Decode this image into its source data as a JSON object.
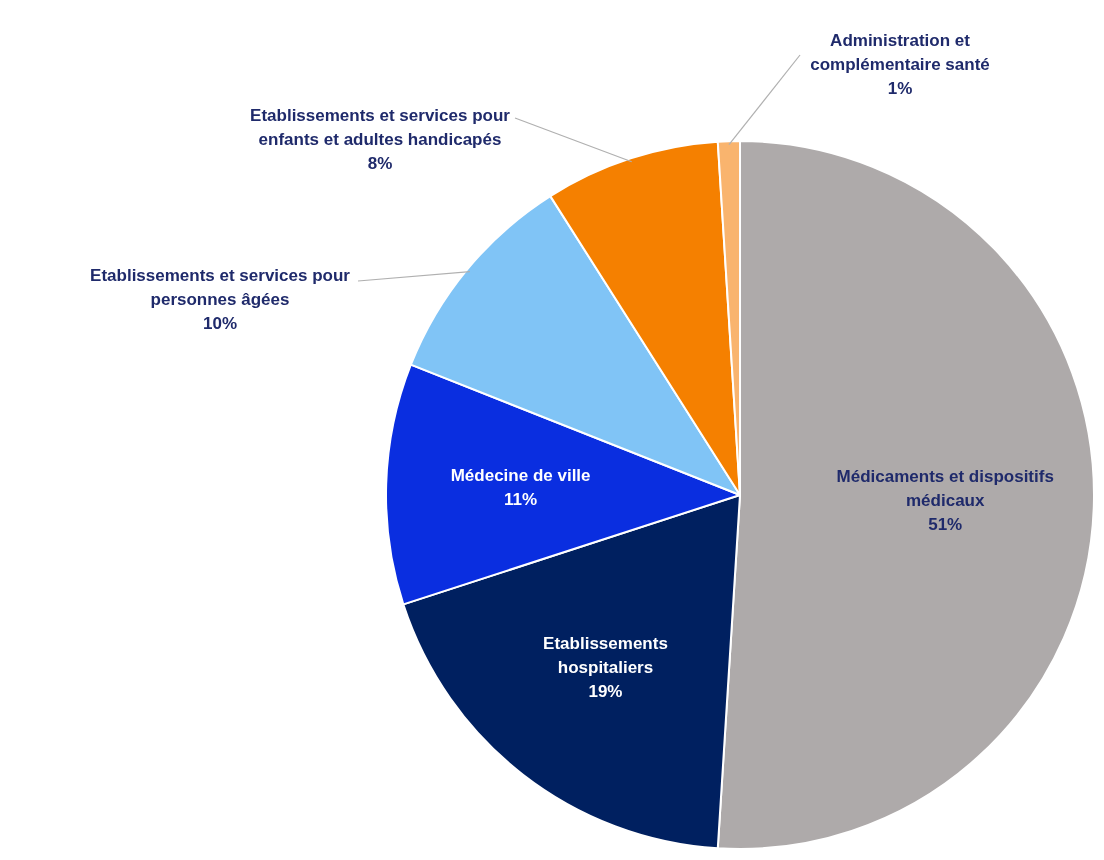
{
  "chart_data": {
    "type": "pie",
    "categories": [
      "Médicaments et dispositifs médicaux",
      "Etablissements hospitaliers",
      "Médecine de ville",
      "Etablissements et services pour personnes âgées",
      "Etablissements et services pour enfants et adultes handicapés",
      "Administration et complémentaire santé"
    ],
    "values": [
      51,
      19,
      11,
      10,
      8,
      1
    ],
    "colors": [
      "#aeaaaa",
      "#002060",
      "#0a2ee0",
      "#80c4f6",
      "#f58000",
      "#f9b46e"
    ],
    "value_labels": [
      "51%",
      "19%",
      "11%",
      "10%",
      "8%",
      "1%"
    ],
    "legend": false
  }
}
